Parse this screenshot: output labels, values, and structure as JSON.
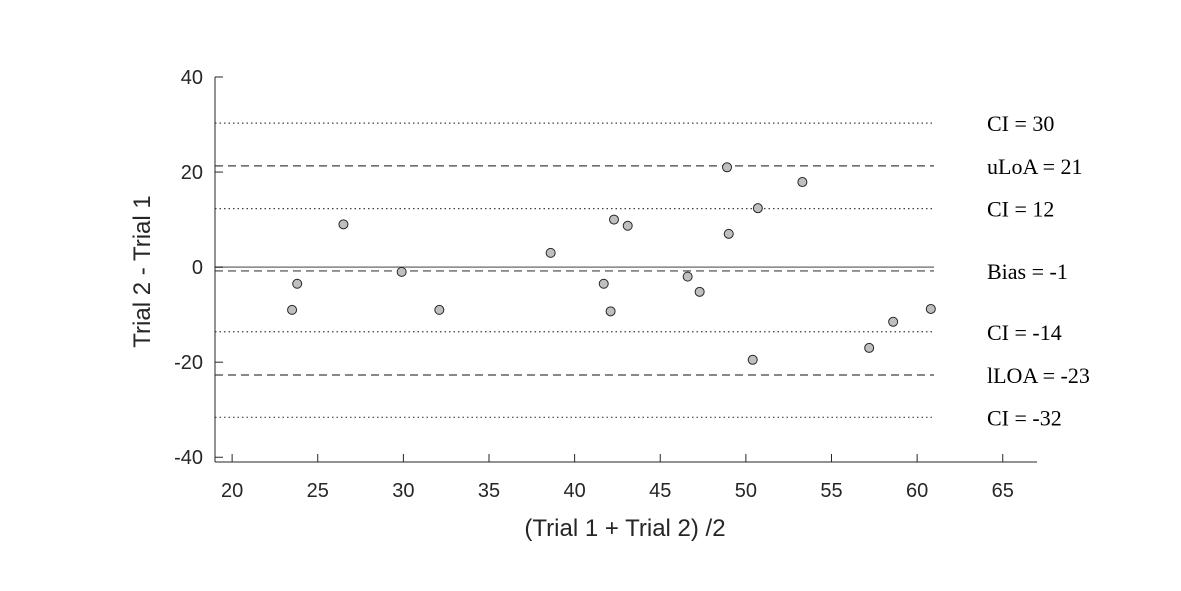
{
  "chart_data": {
    "type": "scatter",
    "title": "",
    "xlabel": "(Trial 1 + Trial 2) /2",
    "ylabel": "Trial 2 - Trial 1",
    "xlim": [
      19,
      67
    ],
    "ylim": [
      -41,
      40
    ],
    "xticks": [
      20,
      25,
      30,
      35,
      40,
      45,
      50,
      55,
      60,
      65
    ],
    "yticks": [
      -40,
      -20,
      0,
      20,
      40
    ],
    "grid": false,
    "colors": {
      "marker_fill": "#bfbfbf",
      "marker_edge": "#262626",
      "axis": "#262626",
      "zero_line": "#808080",
      "reference_line": "#404040"
    },
    "points": [
      {
        "x": 23.5,
        "y": -9
      },
      {
        "x": 23.8,
        "y": -3.5
      },
      {
        "x": 26.5,
        "y": 9
      },
      {
        "x": 29.9,
        "y": -1
      },
      {
        "x": 32.1,
        "y": -9
      },
      {
        "x": 38.6,
        "y": 3
      },
      {
        "x": 41.7,
        "y": -3.5
      },
      {
        "x": 42.1,
        "y": -9.3
      },
      {
        "x": 42.3,
        "y": 10
      },
      {
        "x": 43.1,
        "y": 8.7
      },
      {
        "x": 46.6,
        "y": -2
      },
      {
        "x": 47.3,
        "y": -5.2
      },
      {
        "x": 48.9,
        "y": 21
      },
      {
        "x": 49,
        "y": 7
      },
      {
        "x": 50.4,
        "y": -19.5
      },
      {
        "x": 50.7,
        "y": 12.4
      },
      {
        "x": 53.3,
        "y": 17.9
      },
      {
        "x": 57.2,
        "y": -17
      },
      {
        "x": 58.6,
        "y": -11.5
      },
      {
        "x": 60.8,
        "y": -8.8
      }
    ],
    "reference_lines": [
      {
        "label": "CI = 30",
        "y": 30.3,
        "style": "dotted"
      },
      {
        "label": "uLoA = 21",
        "y": 21.3,
        "style": "dashed"
      },
      {
        "label": "CI = 12",
        "y": 12.3,
        "style": "dotted"
      },
      {
        "label": "Bias = -1",
        "y": -0.8,
        "style": "dashed"
      },
      {
        "label": "CI = -14",
        "y": -13.6,
        "style": "dotted"
      },
      {
        "label": "lLOA = -23",
        "y": -22.7,
        "style": "dashed"
      },
      {
        "label": "CI = -32",
        "y": -31.6,
        "style": "dotted"
      }
    ],
    "zero_line": {
      "y": 0,
      "style": "solid"
    }
  }
}
